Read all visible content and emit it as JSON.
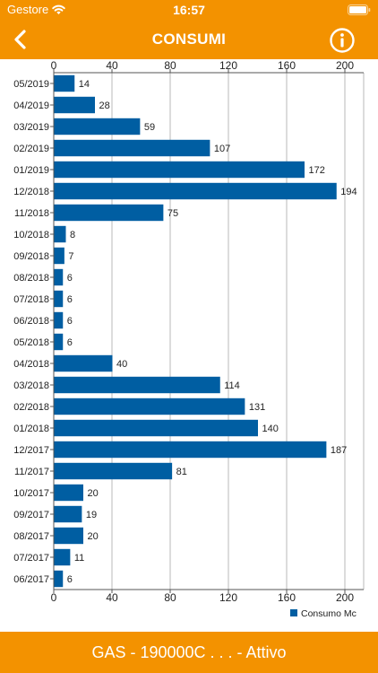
{
  "status_bar": {
    "carrier": "Gestore",
    "time": "16:57"
  },
  "nav": {
    "title": "CONSUMI",
    "back_icon": "chevron-left-icon",
    "info_icon": "info-circle-icon"
  },
  "colors": {
    "brand": "#f39200",
    "bar": "#005ea2",
    "grid": "#b9b9b9",
    "text": "#222222"
  },
  "chart_data": {
    "type": "bar",
    "orientation": "horizontal",
    "categories": [
      "05/2019",
      "04/2019",
      "03/2019",
      "02/2019",
      "01/2019",
      "12/2018",
      "11/2018",
      "10/2018",
      "09/2018",
      "08/2018",
      "07/2018",
      "06/2018",
      "05/2018",
      "04/2018",
      "03/2018",
      "02/2018",
      "01/2018",
      "12/2017",
      "11/2017",
      "10/2017",
      "09/2017",
      "08/2017",
      "07/2017",
      "06/2017"
    ],
    "series": [
      {
        "name": "Consumo Mc",
        "values": [
          14,
          28,
          59,
          107,
          172,
          194,
          75,
          8,
          7,
          6,
          6,
          6,
          6,
          40,
          114,
          131,
          140,
          187,
          81,
          20,
          19,
          20,
          11,
          6
        ]
      }
    ],
    "xlim": [
      0,
      212
    ],
    "xticks": [
      "0",
      "40",
      "80",
      "120",
      "160",
      "200"
    ],
    "grid": true,
    "data_labels": true,
    "legend": "bottom-right"
  },
  "footer": {
    "text": "GAS - 190000C . . . - Attivo"
  }
}
